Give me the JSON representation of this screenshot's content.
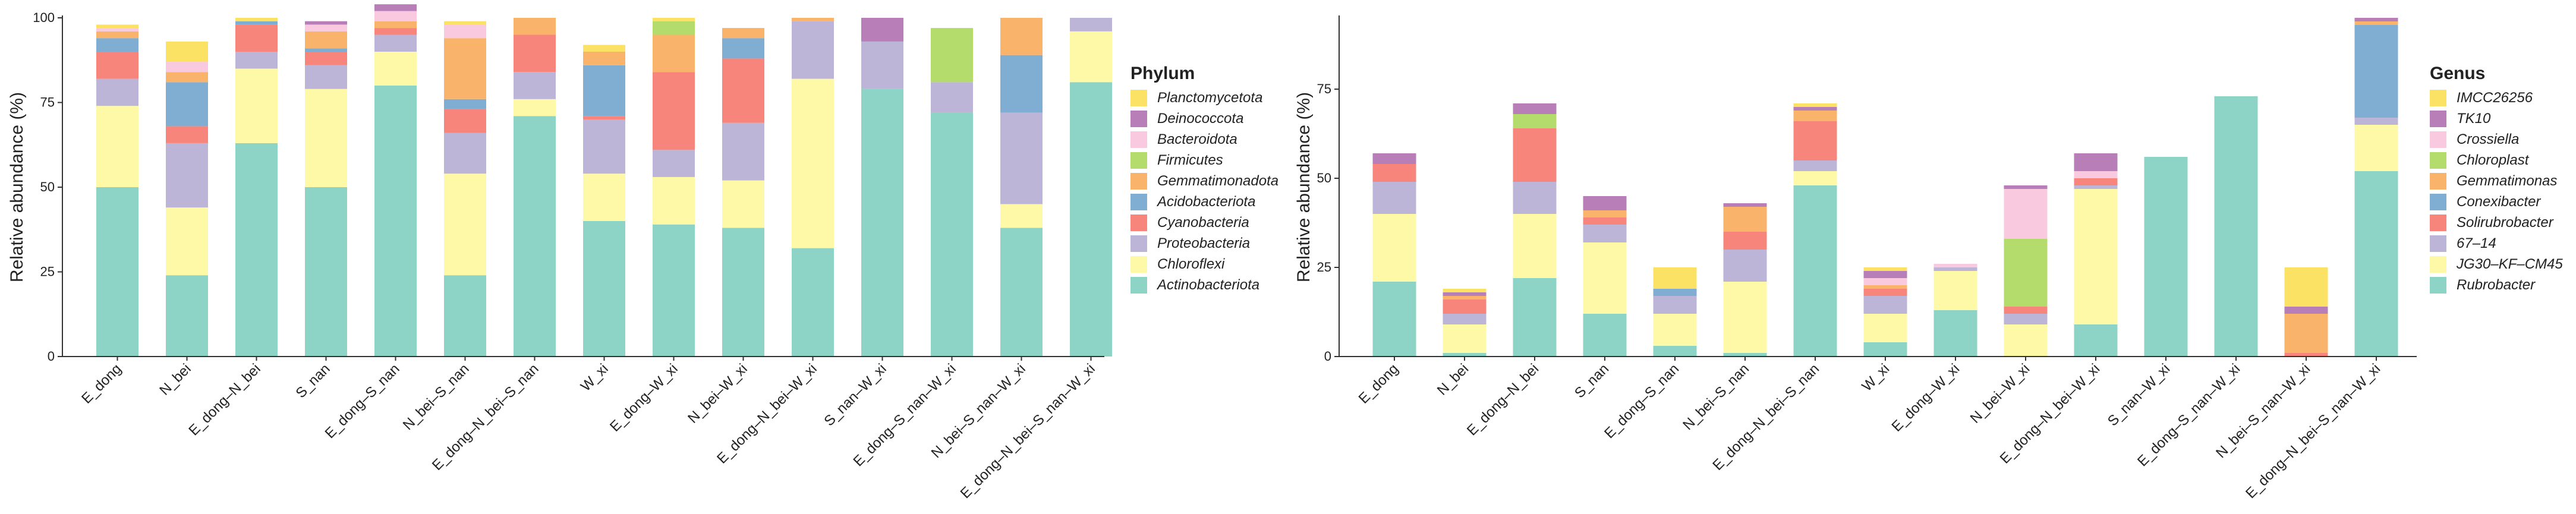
{
  "colors": {
    "Planctomycetota": "#fbe265",
    "Deinococcota": "#b77eb8",
    "Bacteroidota": "#f8c9df",
    "Firmicutes": "#b4dc6c",
    "Gemmatimonadota": "#f9b36a",
    "Acidobacteriota": "#7faed2",
    "Cyanobacteria": "#f7857c",
    "Proteobacteria": "#bcb5d7",
    "Chloroflexi": "#fdf9a7",
    "Actinobacteriota": "#8dd3c6"
  },
  "chart_data": [
    {
      "type": "bar",
      "stacked": true,
      "title": "",
      "xlabel": "",
      "ylabel": "Relative abundance (%)",
      "ylim": [
        0,
        100
      ],
      "yticks": [
        0,
        25,
        50,
        75,
        100
      ],
      "legend_title": "Phylum",
      "legend_order": [
        "Planctomycetota",
        "Deinococcota",
        "Bacteroidota",
        "Firmicutes",
        "Gemmatimonadota",
        "Acidobacteriota",
        "Cyanobacteria",
        "Proteobacteria",
        "Chloroflexi",
        "Actinobacteriota"
      ],
      "categories": [
        "E_dong",
        "N_bei",
        "E_dong–N_bei",
        "S_nan",
        "E_dong–S_nan",
        "N_bei–S_nan",
        "E_dong–N_bei–S_nan",
        "W_xi",
        "E_dong–W_xi",
        "N_bei–W_xi",
        "E_dong–N_bei–W_xi",
        "S_nan–W_xi",
        "E_dong–S_nan–W_xi",
        "N_bei–S_nan–W_xi",
        "E_dong–N_bei–S_nan–W_xi"
      ],
      "series": [
        {
          "name": "Actinobacteriota",
          "values": [
            50,
            24,
            63,
            50,
            80,
            24,
            71,
            40,
            39,
            38,
            32,
            79,
            72,
            38,
            81
          ]
        },
        {
          "name": "Chloroflexi",
          "values": [
            24,
            20,
            22,
            29,
            10,
            30,
            5,
            14,
            14,
            14,
            50,
            0,
            0,
            7,
            15
          ]
        },
        {
          "name": "Proteobacteria",
          "values": [
            8,
            19,
            5,
            7,
            5,
            12,
            8,
            16,
            8,
            17,
            17,
            14,
            9,
            27,
            4
          ]
        },
        {
          "name": "Cyanobacteria",
          "values": [
            8,
            5,
            8,
            4,
            2,
            7,
            11,
            1,
            23,
            19,
            0,
            0,
            0,
            0,
            0
          ]
        },
        {
          "name": "Acidobacteriota",
          "values": [
            4,
            13,
            1,
            1,
            0,
            3,
            0,
            15,
            0,
            6,
            0,
            0,
            0,
            17,
            0
          ]
        },
        {
          "name": "Gemmatimonadota",
          "values": [
            2,
            3,
            0,
            5,
            2,
            18,
            5,
            4,
            11,
            3,
            1,
            0,
            0,
            11,
            0
          ]
        },
        {
          "name": "Firmicutes",
          "values": [
            0,
            0,
            0,
            0,
            0,
            0,
            0,
            0,
            4,
            0,
            0,
            0,
            16,
            0,
            0
          ]
        },
        {
          "name": "Bacteroidota",
          "values": [
            1,
            3,
            0,
            2,
            3,
            4,
            0,
            0,
            0,
            0,
            0,
            0,
            0,
            0,
            0
          ]
        },
        {
          "name": "Deinococcota",
          "values": [
            0,
            0,
            0,
            1,
            2,
            0,
            0,
            0,
            0,
            0,
            0,
            7,
            0,
            0,
            0
          ]
        },
        {
          "name": "Planctomycetota",
          "values": [
            1,
            6,
            1,
            0,
            0,
            1,
            0,
            2,
            1,
            0,
            0,
            0,
            0,
            0,
            0
          ]
        }
      ]
    },
    {
      "type": "bar",
      "stacked": true,
      "title": "",
      "xlabel": "",
      "ylabel": "Relative abundance (%)",
      "ylim": [
        0,
        95
      ],
      "yticks": [
        0,
        25,
        50,
        75
      ],
      "legend_title": "Genus",
      "legend_order": [
        "IMCC26256",
        "TK10",
        "Crossiella",
        "Chloroplast",
        "Gemmatimonas",
        "Conexibacter",
        "Solirubrobacter",
        "67–14",
        "JG30–KF–CM45",
        "Rubrobacter"
      ],
      "categories": [
        "E_dong",
        "N_bei",
        "E_dong–N_bei",
        "S_nan",
        "E_dong–S_nan",
        "N_bei–S_nan",
        "E_dong–N_bei–S_nan",
        "W_xi",
        "E_dong–W_xi",
        "N_bei–W_xi",
        "E_dong–N_bei–W_xi",
        "S_nan–W_xi",
        "E_dong–S_nan–W_xi",
        "N_bei–S_nan–W_xi",
        "E_dong–N_bei–S_nan–W_xi"
      ],
      "series": [
        {
          "name": "Rubrobacter",
          "values": [
            21,
            1,
            22,
            12,
            3,
            1,
            48,
            4,
            13,
            0,
            9,
            56,
            73,
            0,
            52
          ]
        },
        {
          "name": "JG30–KF–CM45",
          "values": [
            19,
            8,
            18,
            20,
            9,
            20,
            4,
            8,
            11,
            9,
            38,
            0,
            0,
            0,
            13
          ]
        },
        {
          "name": "67–14",
          "values": [
            9,
            3,
            9,
            5,
            5,
            9,
            3,
            5,
            1,
            3,
            1,
            0,
            0,
            0,
            2
          ]
        },
        {
          "name": "Solirubrobacter",
          "values": [
            5,
            4,
            15,
            2,
            0,
            5,
            11,
            2,
            0,
            2,
            2,
            0,
            0,
            1,
            0
          ]
        },
        {
          "name": "Conexibacter",
          "values": [
            0,
            0,
            0,
            0,
            2,
            0,
            0,
            0,
            0,
            0,
            0,
            0,
            0,
            0,
            26
          ]
        },
        {
          "name": "Gemmatimonas",
          "values": [
            0,
            1,
            0,
            2,
            0,
            7,
            3,
            1,
            0,
            0,
            0,
            0,
            0,
            11,
            1
          ]
        },
        {
          "name": "Chloroplast",
          "values": [
            0,
            0,
            4,
            0,
            0,
            0,
            0,
            0,
            0,
            19,
            0,
            0,
            0,
            0,
            0
          ]
        },
        {
          "name": "Crossiella",
          "values": [
            0,
            0,
            0,
            0,
            0,
            0,
            0,
            2,
            1,
            14,
            2,
            0,
            0,
            0,
            0
          ]
        },
        {
          "name": "TK10",
          "values": [
            3,
            1,
            3,
            4,
            0,
            1,
            1,
            2,
            0,
            1,
            5,
            0,
            0,
            2,
            1
          ]
        },
        {
          "name": "IMCC26256",
          "values": [
            0,
            1,
            0,
            0,
            6,
            0,
            1,
            1,
            0,
            0,
            0,
            0,
            0,
            11,
            0
          ]
        }
      ]
    }
  ]
}
